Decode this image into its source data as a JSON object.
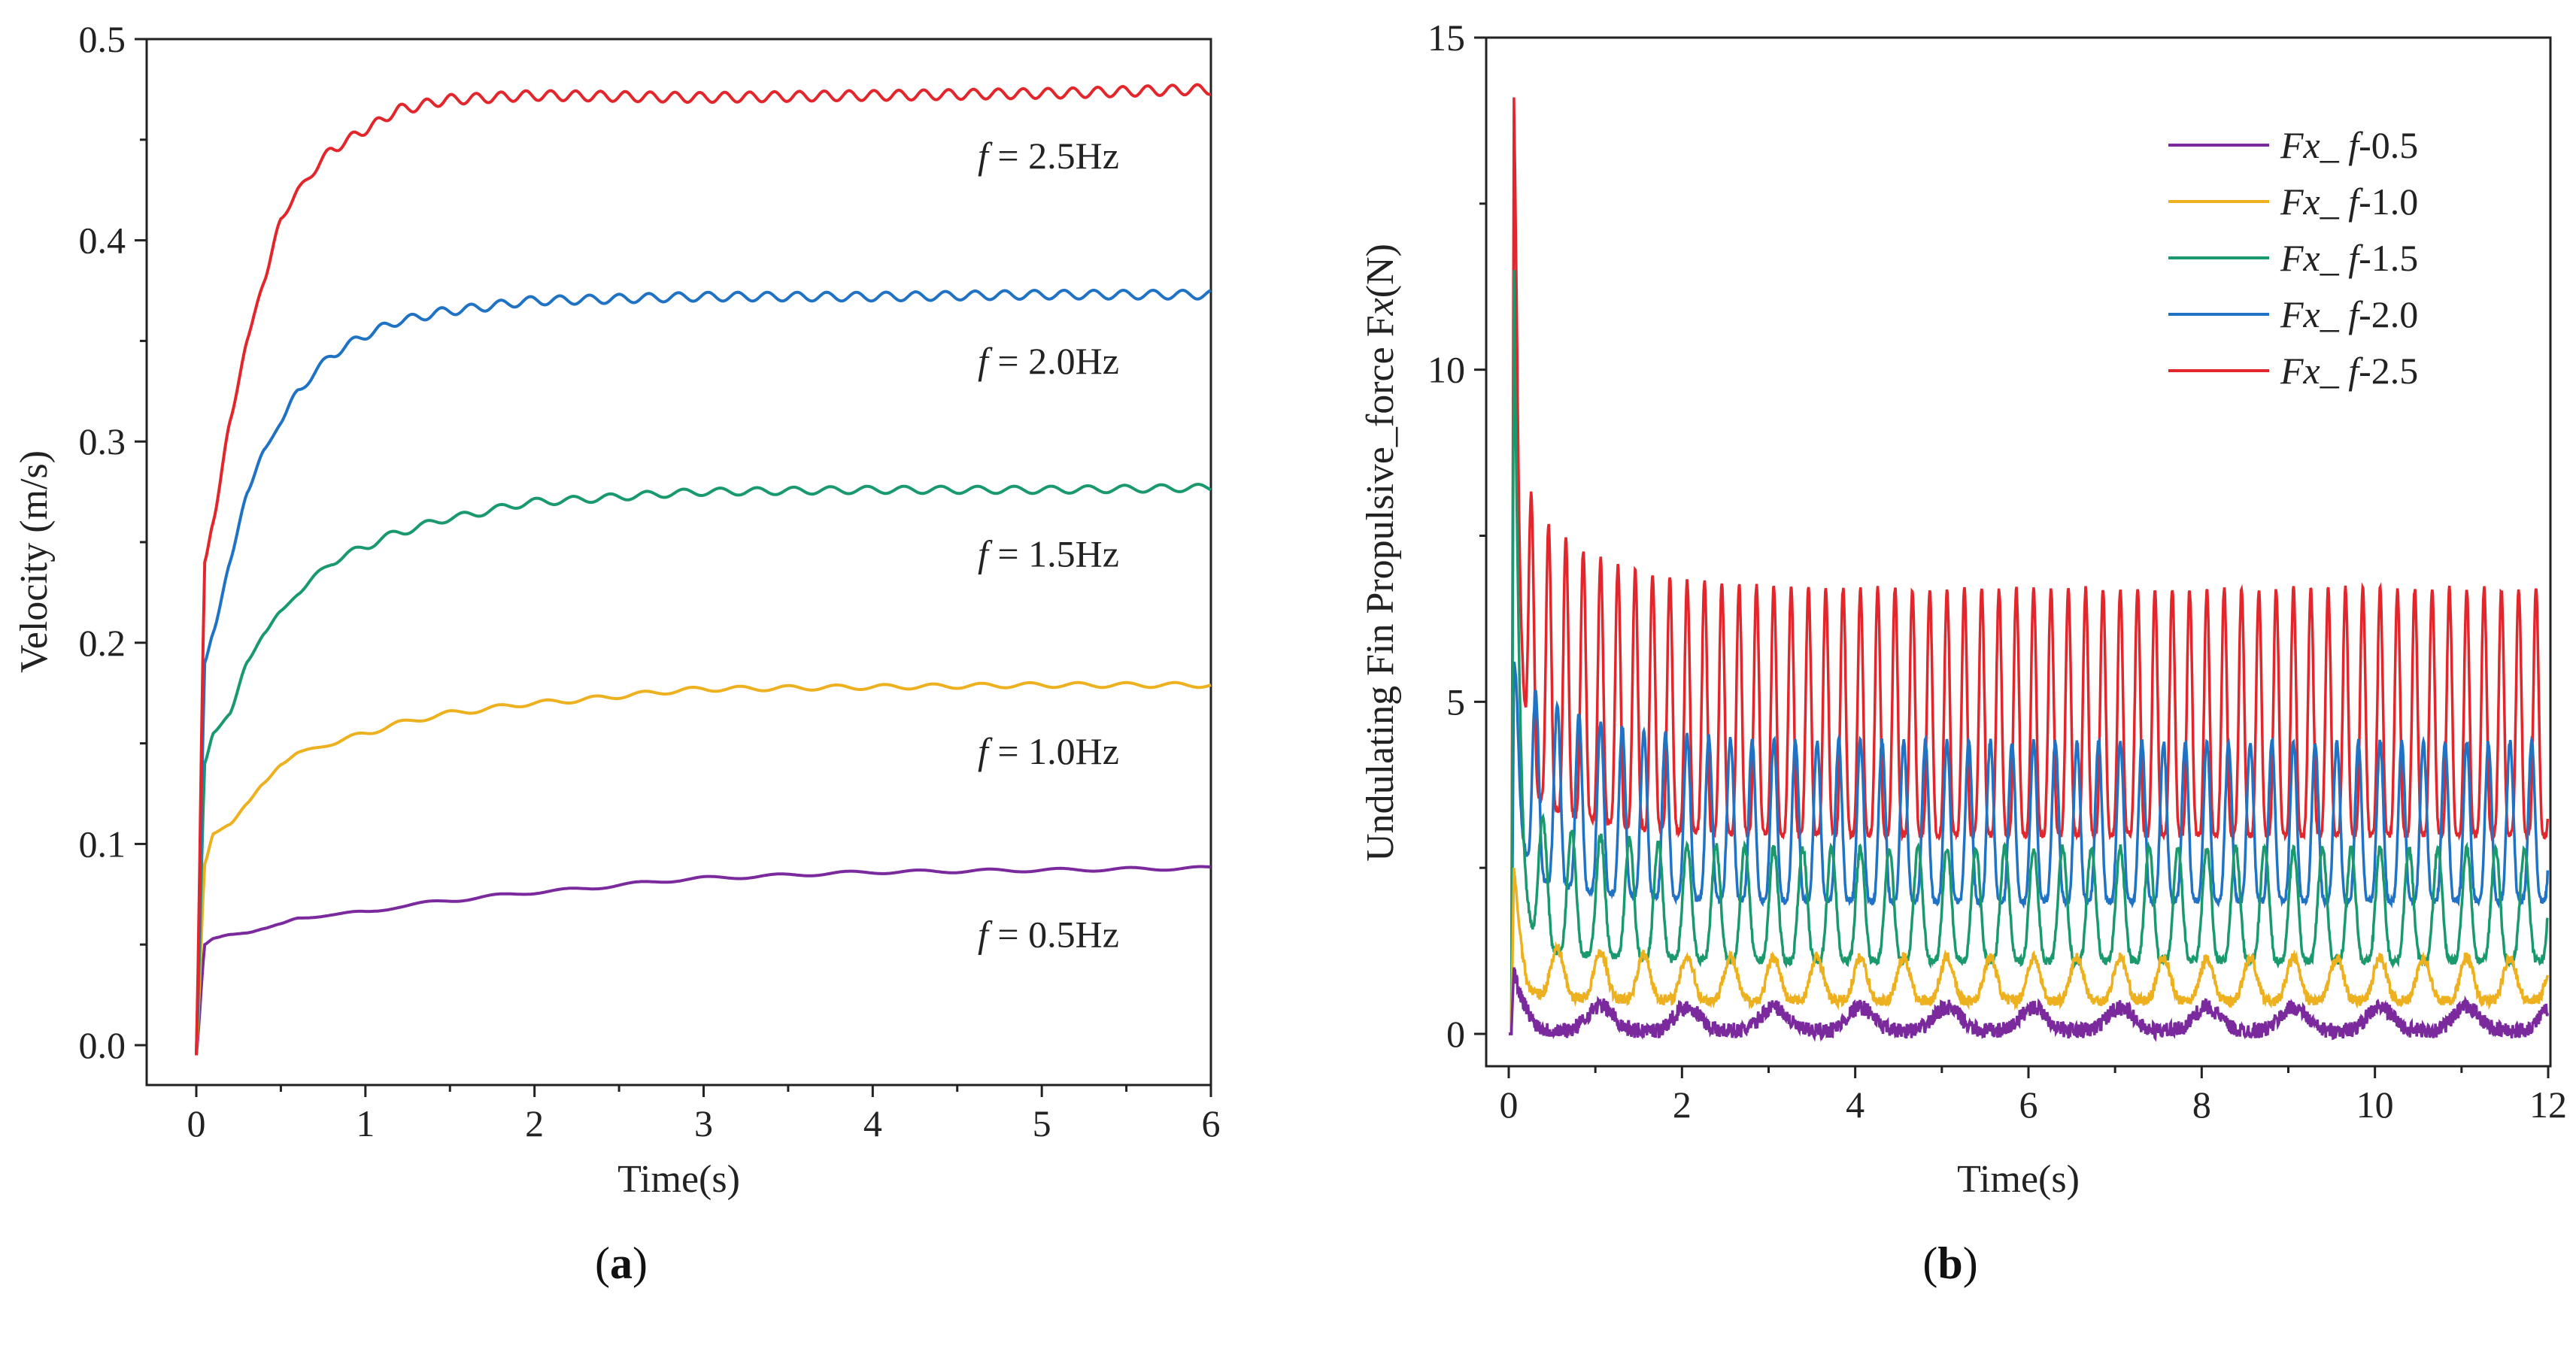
{
  "chart_data": [
    {
      "type": "line",
      "panel_caption": "a",
      "xlabel": "Time(s)",
      "ylabel": "Velocity (m/s)",
      "xlim": [
        -0.3,
        6
      ],
      "ylim": [
        -0.03,
        0.5
      ],
      "xticks": [
        0,
        1,
        2,
        3,
        4,
        5,
        6
      ],
      "yticks": [
        0.0,
        0.1,
        0.2,
        0.3,
        0.4,
        0.5
      ],
      "ytick_labels": [
        "0.0",
        "0.1",
        "0.2",
        "0.3",
        "0.4",
        "0.5"
      ],
      "grid": false,
      "x": [
        0,
        0.05,
        0.1,
        0.2,
        0.3,
        0.4,
        0.5,
        0.6,
        0.8,
        1.0,
        1.2,
        1.5,
        2,
        3,
        4,
        5,
        6
      ],
      "series": [
        {
          "name": "f = 0.5Hz",
          "annotation_prefix": "f",
          "annotation_suffix": " = 0.5Hz",
          "color": "#7B2A9E",
          "ripple": 0.0008,
          "values": [
            -0.005,
            0.05,
            0.053,
            0.055,
            0.056,
            0.058,
            0.06,
            0.063,
            0.065,
            0.066,
            0.069,
            0.072,
            0.076,
            0.083,
            0.086,
            0.087,
            0.088
          ]
        },
        {
          "name": "f = 1.0Hz",
          "annotation_prefix": "f",
          "annotation_suffix": " = 1.0Hz",
          "color": "#EDB120",
          "ripple": 0.0012,
          "values": [
            -0.005,
            0.09,
            0.105,
            0.11,
            0.12,
            0.13,
            0.14,
            0.145,
            0.15,
            0.155,
            0.16,
            0.165,
            0.17,
            0.177,
            0.178,
            0.179,
            0.179
          ]
        },
        {
          "name": "f = 1.5Hz",
          "annotation_prefix": "f",
          "annotation_suffix": " = 1.5Hz",
          "color": "#1A9A6C",
          "ripple": 0.0018,
          "values": [
            -0.005,
            0.14,
            0.155,
            0.165,
            0.19,
            0.205,
            0.215,
            0.225,
            0.24,
            0.248,
            0.255,
            0.262,
            0.27,
            0.275,
            0.276,
            0.276,
            0.277
          ]
        },
        {
          "name": "f = 2.0Hz",
          "annotation_prefix": "f",
          "annotation_suffix": " = 2.0Hz",
          "color": "#1F72C4",
          "ripple": 0.0022,
          "values": [
            -0.005,
            0.19,
            0.205,
            0.24,
            0.275,
            0.295,
            0.31,
            0.325,
            0.343,
            0.353,
            0.36,
            0.365,
            0.37,
            0.372,
            0.372,
            0.373,
            0.373
          ]
        },
        {
          "name": "f = 2.5Hz",
          "annotation_prefix": "f",
          "annotation_suffix": " = 2.5Hz",
          "color": "#E3262B",
          "ripple": 0.0025,
          "values": [
            -0.005,
            0.24,
            0.26,
            0.31,
            0.35,
            0.38,
            0.41,
            0.425,
            0.445,
            0.455,
            0.465,
            0.47,
            0.472,
            0.471,
            0.472,
            0.473,
            0.475
          ]
        }
      ]
    },
    {
      "type": "line",
      "panel_caption": "b",
      "xlabel": "Time(s)",
      "ylabel": "Undulating Fin Propulsive_force Fx(N)",
      "ylabel_parts": [
        "Undulating Fin Propulsive_force F",
        "x",
        "(N)"
      ],
      "xlim": [
        -0.5,
        12
      ],
      "ylim": [
        -0.5,
        15
      ],
      "xticks": [
        0,
        2,
        4,
        6,
        8,
        10,
        12
      ],
      "yticks": [
        0,
        5,
        10,
        15
      ],
      "grid": false,
      "legend_position": "top-right",
      "series": [
        {
          "name": "Fx_ f-0.5",
          "legend_italic": "Fx_ f",
          "legend_suffix": "-0.5",
          "color": "#7B2A9E",
          "oscillation_hz": 1.0,
          "min": 0.05,
          "max": 0.4,
          "initial_peak": 1.0,
          "noise": 0.12
        },
        {
          "name": "Fx_ f-1.0",
          "legend_italic": "Fx_ f",
          "legend_suffix": "-1.0",
          "color": "#EDB120",
          "oscillation_hz": 2.0,
          "min": 0.5,
          "max": 1.15,
          "initial_peak": 2.5,
          "noise": 0.08
        },
        {
          "name": "Fx_ f-1.5",
          "legend_italic": "Fx_ f",
          "legend_suffix": "-1.5",
          "color": "#1A9A6C",
          "oscillation_hz": 3.0,
          "min": 1.1,
          "max": 2.8,
          "initial_peak": 11.5,
          "noise": 0.06
        },
        {
          "name": "Fx_ f-2.0",
          "legend_italic": "Fx_ f",
          "legend_suffix": "-2.0",
          "color": "#1F72C4",
          "oscillation_hz": 4.0,
          "min": 2.0,
          "max": 4.4,
          "initial_peak": 5.6,
          "noise": 0.05
        },
        {
          "name": "Fx_ f-2.5",
          "legend_italic": "Fx_ f",
          "legend_suffix": "-2.5",
          "color": "#E3262B",
          "oscillation_hz": 5.0,
          "min": 3.0,
          "max": 6.7,
          "initial_peak": 14.1,
          "noise": 0.05
        }
      ]
    }
  ]
}
